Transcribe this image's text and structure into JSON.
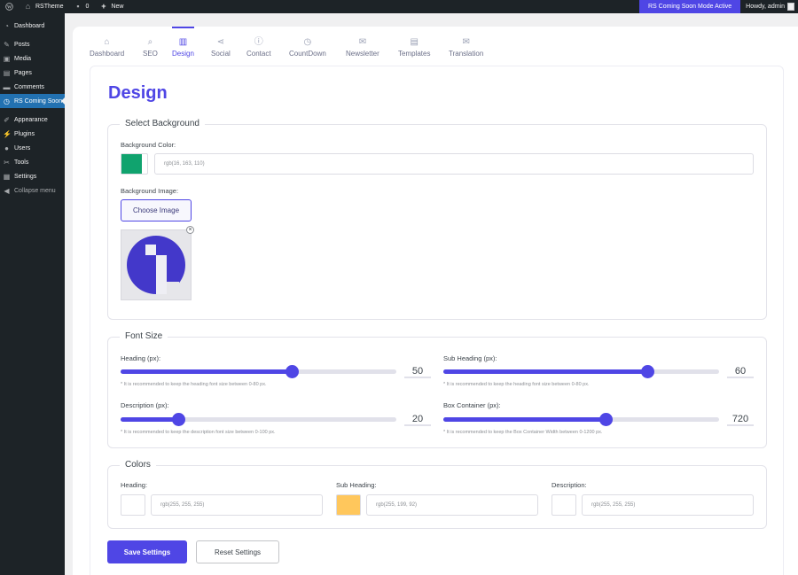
{
  "adminbar": {
    "site_name": "RSTheme",
    "comments_count": "0",
    "new_label": "New",
    "status_label": "RS Coming Soon Mode Active",
    "howdy": "Howdy, admin"
  },
  "sidebar": {
    "items": [
      {
        "label": "Dashboard",
        "icon": "dashboard-icon"
      },
      {
        "label": "Posts",
        "icon": "pin-icon"
      },
      {
        "label": "Media",
        "icon": "media-icon"
      },
      {
        "label": "Pages",
        "icon": "pages-icon"
      },
      {
        "label": "Comments",
        "icon": "comment-icon"
      },
      {
        "label": "RS Coming Soon",
        "icon": "clock-icon"
      },
      {
        "label": "Appearance",
        "icon": "brush-icon"
      },
      {
        "label": "Plugins",
        "icon": "plugin-icon"
      },
      {
        "label": "Users",
        "icon": "user-icon"
      },
      {
        "label": "Tools",
        "icon": "wrench-icon"
      },
      {
        "label": "Settings",
        "icon": "settings-icon"
      }
    ],
    "collapse_label": "Collapse menu"
  },
  "tabs": [
    {
      "label": "Dashboard",
      "icon": "home-icon"
    },
    {
      "label": "SEO",
      "icon": "seo-icon"
    },
    {
      "label": "Design",
      "icon": "design-icon"
    },
    {
      "label": "Social",
      "icon": "share-icon"
    },
    {
      "label": "Contact",
      "icon": "info-icon"
    },
    {
      "label": "CountDown",
      "icon": "clock-icon"
    },
    {
      "label": "Newsletter",
      "icon": "mail-icon"
    },
    {
      "label": "Templates",
      "icon": "template-icon"
    },
    {
      "label": "Translation",
      "icon": "mail-icon"
    }
  ],
  "active_tab": "Design",
  "page_title": "Design",
  "background": {
    "legend": "Select Background",
    "color_label": "Background Color:",
    "color_value": "rgb(16, 163, 110)",
    "color_hex": "#10a36e",
    "image_label": "Background Image:",
    "choose_button": "Choose Image",
    "close_glyph": "×"
  },
  "font_size": {
    "legend": "Font Size",
    "sliders": [
      {
        "label": "Heading (px):",
        "value": "50",
        "fraction": 0.62,
        "hint": "* It is recommended to keep the heading font size between 0-80 px."
      },
      {
        "label": "Sub Heading (px):",
        "value": "60",
        "fraction": 0.74,
        "hint": "* It is recommended to keep the heading font size between 0-80 px."
      },
      {
        "label": "Description (px):",
        "value": "20",
        "fraction": 0.21,
        "hint": "* It is recommended to keep the description font size between 0-100 px."
      },
      {
        "label": "Box Container (px):",
        "value": "720",
        "fraction": 0.59,
        "hint": "* It is recommended to keep the Box Container Width between 0-1200 px."
      }
    ]
  },
  "colors": {
    "legend": "Colors",
    "fields": [
      {
        "label": "Heading:",
        "value": "rgb(255, 255, 255)",
        "hex": "#ffffff"
      },
      {
        "label": "Sub Heading:",
        "value": "rgb(255, 199, 92)",
        "hex": "#ffc75c"
      },
      {
        "label": "Description:",
        "value": "rgb(255, 255, 255)",
        "hex": "#ffffff"
      }
    ]
  },
  "actions": {
    "save": "Save Settings",
    "reset": "Reset Settings"
  },
  "accent_color": "#4f46e5"
}
